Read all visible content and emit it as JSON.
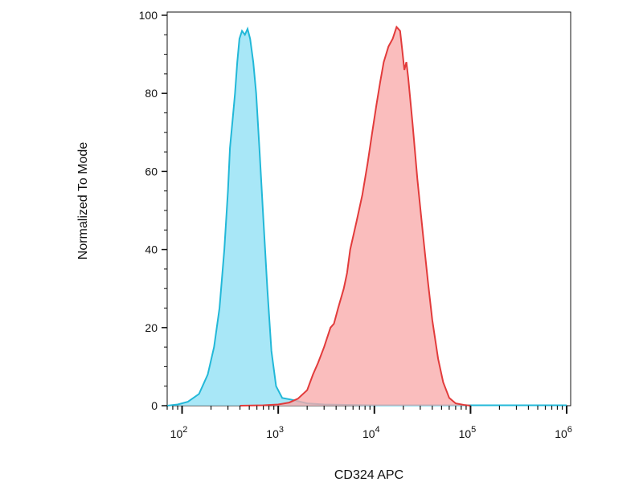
{
  "chart_data": {
    "type": "area",
    "xscale": "log",
    "xlim": [
      70,
      1100000
    ],
    "ylim": [
      0,
      100
    ],
    "grid": false,
    "legend": "none",
    "xlabel": "CD324 APC",
    "ylabel": "Normalized To Mode",
    "y_ticks": [
      0,
      20,
      40,
      60,
      80,
      100
    ],
    "x_major_ticks": [
      {
        "value": 100,
        "base": "10",
        "exp": "2"
      },
      {
        "value": 1000,
        "base": "10",
        "exp": "3"
      },
      {
        "value": 10000,
        "base": "10",
        "exp": "4"
      },
      {
        "value": 100000,
        "base": "10",
        "exp": "5"
      },
      {
        "value": 1000000,
        "base": "10",
        "exp": "6"
      }
    ],
    "series": [
      {
        "color_fill": "#8fe0f5",
        "color_line": "#22b8d8",
        "points": [
          [
            70,
            0
          ],
          [
            90,
            0.3
          ],
          [
            115,
            1
          ],
          [
            150,
            3
          ],
          [
            185,
            8
          ],
          [
            215,
            15
          ],
          [
            245,
            25
          ],
          [
            275,
            40
          ],
          [
            300,
            55
          ],
          [
            315,
            66
          ],
          [
            335,
            73
          ],
          [
            355,
            80
          ],
          [
            375,
            88
          ],
          [
            395,
            94
          ],
          [
            420,
            96
          ],
          [
            450,
            95
          ],
          [
            480,
            96.5
          ],
          [
            510,
            94
          ],
          [
            550,
            88
          ],
          [
            590,
            80
          ],
          [
            640,
            65
          ],
          [
            700,
            48
          ],
          [
            770,
            30
          ],
          [
            850,
            14
          ],
          [
            950,
            5
          ],
          [
            1100,
            2
          ],
          [
            1400,
            1.5
          ],
          [
            1700,
            1
          ],
          [
            2000,
            0.6
          ],
          [
            3000,
            0.3
          ],
          [
            5000,
            0.2
          ],
          [
            10000,
            0.1
          ],
          [
            50000,
            0.1
          ],
          [
            100000,
            0.1
          ],
          [
            1000000,
            0.1
          ]
        ]
      },
      {
        "color_fill": "#f9aaaa",
        "color_line": "#e23b3b",
        "points": [
          [
            400,
            0
          ],
          [
            700,
            0.1
          ],
          [
            1000,
            0.3
          ],
          [
            1300,
            0.8
          ],
          [
            1600,
            1.8
          ],
          [
            2000,
            4
          ],
          [
            2300,
            8
          ],
          [
            2600,
            11
          ],
          [
            3000,
            15
          ],
          [
            3500,
            20
          ],
          [
            3800,
            21
          ],
          [
            4200,
            25
          ],
          [
            4800,
            30
          ],
          [
            5200,
            34
          ],
          [
            5600,
            40
          ],
          [
            6500,
            47
          ],
          [
            7500,
            54
          ],
          [
            8500,
            62
          ],
          [
            9500,
            70
          ],
          [
            10500,
            77
          ],
          [
            11500,
            83
          ],
          [
            12500,
            88
          ],
          [
            14000,
            92
          ],
          [
            15500,
            94
          ],
          [
            17000,
            97
          ],
          [
            18500,
            96
          ],
          [
            19500,
            91
          ],
          [
            20500,
            86
          ],
          [
            21500,
            88
          ],
          [
            22500,
            84
          ],
          [
            25000,
            72
          ],
          [
            28000,
            58
          ],
          [
            32000,
            44
          ],
          [
            36000,
            32
          ],
          [
            40000,
            22
          ],
          [
            46000,
            12
          ],
          [
            52000,
            6
          ],
          [
            60000,
            2
          ],
          [
            70000,
            0.6
          ],
          [
            85000,
            0.2
          ],
          [
            100000,
            0
          ]
        ]
      }
    ]
  }
}
